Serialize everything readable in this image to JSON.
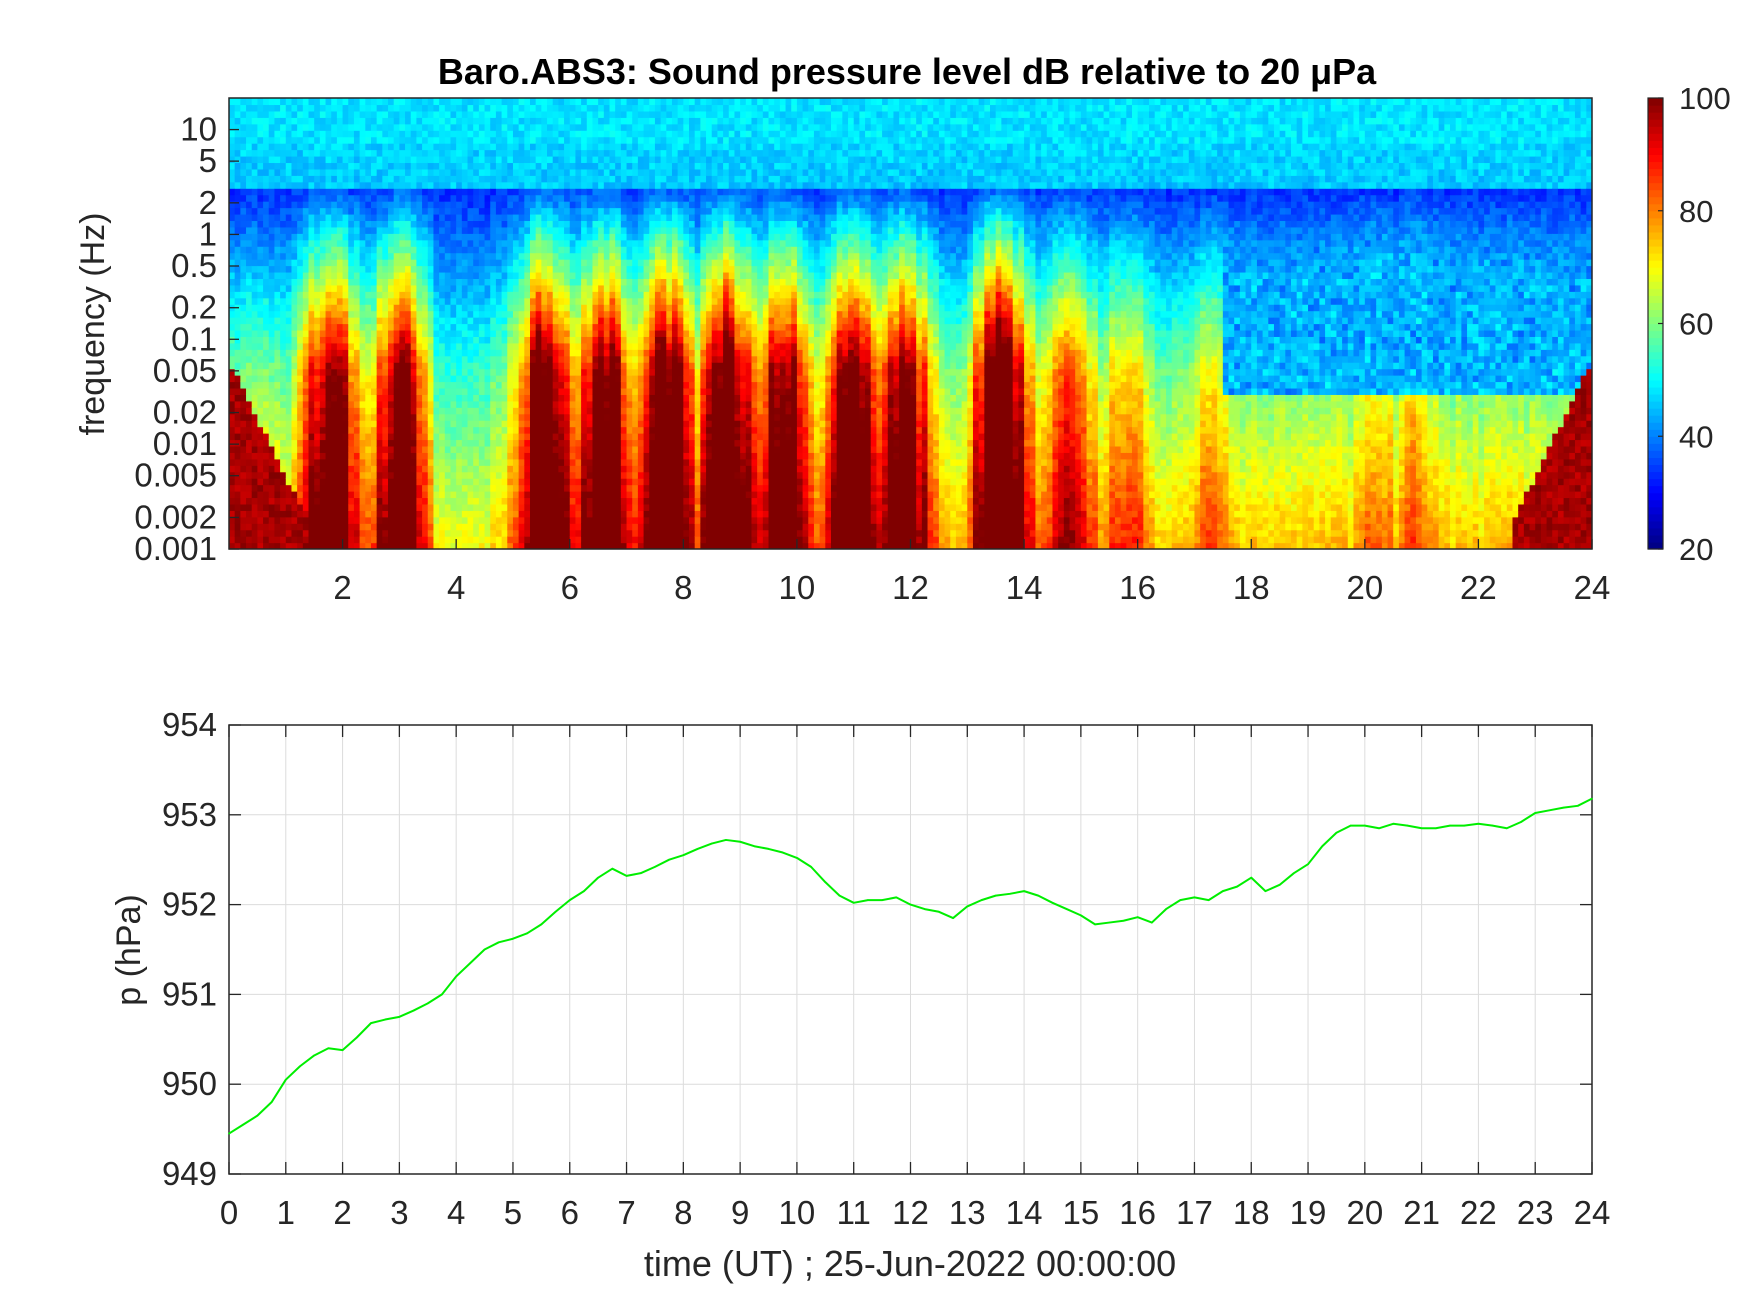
{
  "figure": {
    "xlabel": "time (UT) ; 25-Jun-2022 00:00:00"
  },
  "chart_data": [
    {
      "type": "heatmap",
      "title": "Baro.ABS3: Sound pressure level dB relative to 20 μPa",
      "ylabel": "frequency (Hz)",
      "xlim": [
        0,
        24
      ],
      "ylim": [
        0.001,
        20
      ],
      "yscale": "log",
      "xticks": [
        2,
        4,
        6,
        8,
        10,
        12,
        14,
        16,
        18,
        20,
        22,
        24
      ],
      "xtick_labels": [
        "2",
        "4",
        "6",
        "8",
        "10",
        "12",
        "14",
        "16",
        "18",
        "20",
        "22",
        "24"
      ],
      "yticks": [
        0.001,
        0.002,
        0.005,
        0.01,
        0.02,
        0.05,
        0.1,
        0.2,
        0.5,
        1,
        2,
        5,
        10
      ],
      "ytick_labels": [
        "0.001",
        "0.002",
        "0.005",
        "0.01",
        "0.02",
        "0.05",
        "0.1",
        "0.2",
        "0.5",
        "1",
        "2",
        "5",
        "10"
      ],
      "colorbar": {
        "colormap": "jet",
        "clim": [
          20,
          100
        ],
        "ticks": [
          20,
          40,
          60,
          80,
          100
        ],
        "tick_labels": [
          "20",
          "40",
          "60",
          "80",
          "100"
        ]
      },
      "grid": false
    },
    {
      "type": "line",
      "ylabel": "p (hPa)",
      "xlim": [
        0,
        24
      ],
      "ylim": [
        949,
        954
      ],
      "xticks": [
        0,
        1,
        2,
        3,
        4,
        5,
        6,
        7,
        8,
        9,
        10,
        11,
        12,
        13,
        14,
        15,
        16,
        17,
        18,
        19,
        20,
        21,
        22,
        23,
        24
      ],
      "xtick_labels": [
        "0",
        "1",
        "2",
        "3",
        "4",
        "5",
        "6",
        "7",
        "8",
        "9",
        "10",
        "11",
        "12",
        "13",
        "14",
        "15",
        "16",
        "17",
        "18",
        "19",
        "20",
        "21",
        "22",
        "23",
        "24"
      ],
      "yticks": [
        949,
        950,
        951,
        952,
        953,
        954
      ],
      "ytick_labels": [
        "949",
        "950",
        "951",
        "952",
        "953",
        "954"
      ],
      "grid": true,
      "series": [
        {
          "color": "#00ee00",
          "x": [
            0,
            0.25,
            0.5,
            0.75,
            1.0,
            1.25,
            1.5,
            1.75,
            2.0,
            2.25,
            2.5,
            2.75,
            3.0,
            3.25,
            3.5,
            3.75,
            4.0,
            4.25,
            4.5,
            4.75,
            5.0,
            5.25,
            5.5,
            5.75,
            6.0,
            6.25,
            6.5,
            6.75,
            7.0,
            7.25,
            7.5,
            7.75,
            8.0,
            8.25,
            8.5,
            8.75,
            9.0,
            9.25,
            9.5,
            9.75,
            10.0,
            10.25,
            10.5,
            10.75,
            11.0,
            11.25,
            11.5,
            11.75,
            12.0,
            12.25,
            12.5,
            12.75,
            13.0,
            13.25,
            13.5,
            13.75,
            14.0,
            14.25,
            14.5,
            14.75,
            15.0,
            15.25,
            15.5,
            15.75,
            16.0,
            16.25,
            16.5,
            16.75,
            17.0,
            17.25,
            17.5,
            17.75,
            18.0,
            18.25,
            18.5,
            18.75,
            19.0,
            19.25,
            19.5,
            19.75,
            20.0,
            20.25,
            20.5,
            20.75,
            21.0,
            21.25,
            21.5,
            21.75,
            22.0,
            22.25,
            22.5,
            22.75,
            23.0,
            23.25,
            23.5,
            23.75,
            24.0
          ],
          "y": [
            949.45,
            949.55,
            949.65,
            949.8,
            950.05,
            950.2,
            950.32,
            950.4,
            950.38,
            950.52,
            950.68,
            950.72,
            950.75,
            950.82,
            950.9,
            951.0,
            951.2,
            951.35,
            951.5,
            951.58,
            951.62,
            951.68,
            951.78,
            951.92,
            952.05,
            952.15,
            952.3,
            952.4,
            952.32,
            952.35,
            952.42,
            952.5,
            952.55,
            952.62,
            952.68,
            952.72,
            952.7,
            952.65,
            952.62,
            952.58,
            952.52,
            952.42,
            952.25,
            952.1,
            952.02,
            952.05,
            952.05,
            952.08,
            952.0,
            951.95,
            951.92,
            951.85,
            951.98,
            952.05,
            952.1,
            952.12,
            952.15,
            952.1,
            952.02,
            951.95,
            951.88,
            951.78,
            951.8,
            951.82,
            951.86,
            951.8,
            951.95,
            952.05,
            952.08,
            952.05,
            952.15,
            952.2,
            952.3,
            952.15,
            952.22,
            952.35,
            952.45,
            952.65,
            952.8,
            952.88,
            952.88,
            952.85,
            952.9,
            952.88,
            952.85,
            952.85,
            952.88,
            952.88,
            952.9,
            952.88,
            952.85,
            952.92,
            953.02,
            953.05,
            953.08,
            953.1,
            953.18
          ]
        }
      ]
    }
  ]
}
